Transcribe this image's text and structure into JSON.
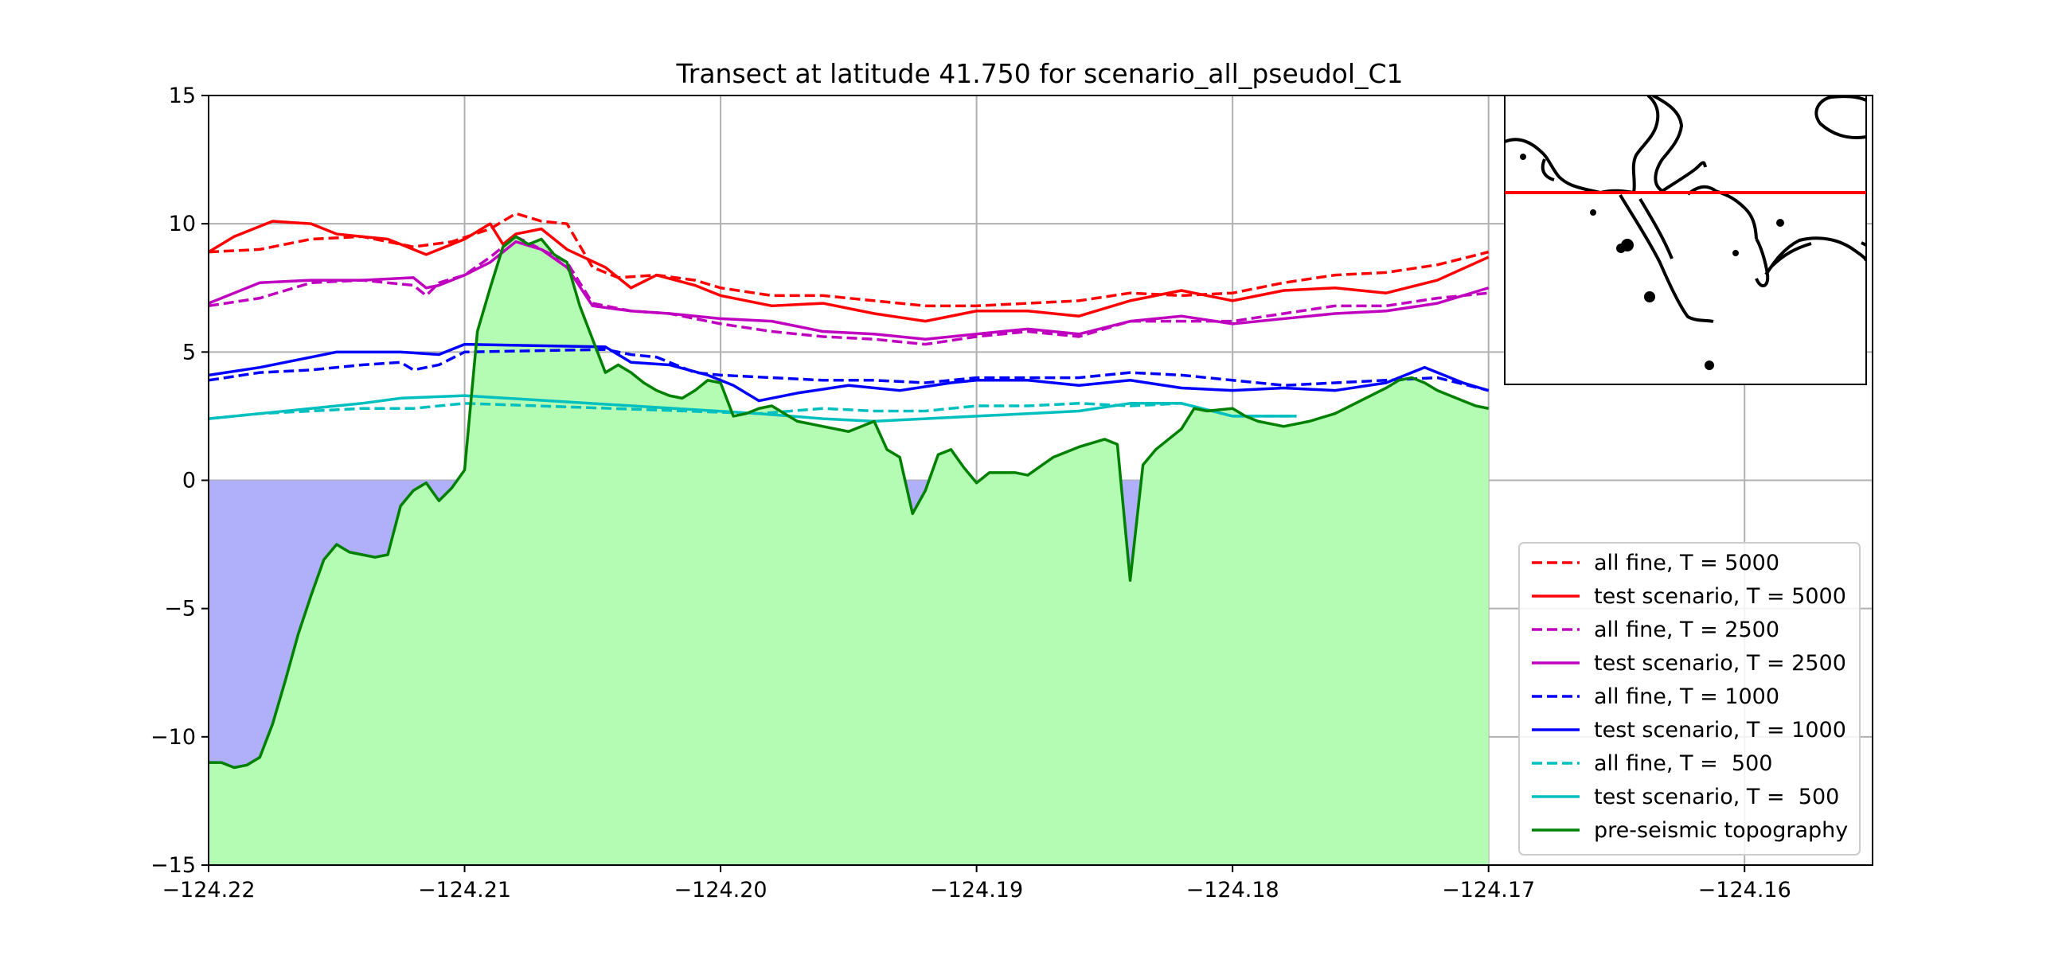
{
  "chart_data": {
    "type": "line",
    "title": "Transect at latitude 41.750 for scenario_all_pseudol_C1",
    "xlabel": "",
    "ylabel": "",
    "xlim": [
      -124.22,
      -124.155
    ],
    "ylim": [
      -15,
      15
    ],
    "xticks": [
      -124.22,
      -124.21,
      -124.2,
      -124.19,
      -124.18,
      -124.17,
      -124.16
    ],
    "xtick_labels": [
      "−124.22",
      "−124.21",
      "−124.20",
      "−124.19",
      "−124.18",
      "−124.17",
      "−124.16"
    ],
    "yticks": [
      -15,
      -10,
      -5,
      0,
      5,
      10,
      15
    ],
    "ytick_labels": [
      "−15",
      "−10",
      "−5",
      "0",
      "5",
      "10",
      "15"
    ],
    "grid": true,
    "legend_position": "lower-right",
    "water_fill_color": "#b0b0fa",
    "land_fill_color": "#b4fbb4",
    "series": [
      {
        "name": "all fine, T = 5000",
        "color": "#ff0000",
        "dash": true,
        "x": [
          -124.22,
          -124.218,
          -124.216,
          -124.214,
          -124.212,
          -124.2105,
          -124.209,
          -124.208,
          -124.207,
          -124.206,
          -124.205,
          -124.204,
          -124.2025,
          -124.201,
          -124.2,
          -124.198,
          -124.196,
          -124.194,
          -124.192,
          -124.19,
          -124.188,
          -124.186,
          -124.184,
          -124.182,
          -124.18,
          -124.178,
          -124.176,
          -124.174,
          -124.172,
          -124.17
        ],
        "y": [
          8.9,
          9.0,
          9.4,
          9.5,
          9.1,
          9.3,
          9.8,
          10.4,
          10.1,
          10.0,
          8.3,
          7.9,
          8.0,
          7.8,
          7.5,
          7.2,
          7.2,
          7.0,
          6.8,
          6.8,
          6.9,
          7.0,
          7.3,
          7.2,
          7.3,
          7.7,
          8.0,
          8.1,
          8.4,
          8.9
        ]
      },
      {
        "name": "test scenario, T = 5000",
        "color": "#ff0000",
        "dash": false,
        "x": [
          -124.22,
          -124.219,
          -124.2175,
          -124.216,
          -124.215,
          -124.213,
          -124.2115,
          -124.21,
          -124.209,
          -124.2085,
          -124.208,
          -124.207,
          -124.206,
          -124.2045,
          -124.2035,
          -124.2025,
          -124.201,
          -124.2,
          -124.198,
          -124.196,
          -124.194,
          -124.192,
          -124.19,
          -124.188,
          -124.186,
          -124.184,
          -124.182,
          -124.18,
          -124.178,
          -124.176,
          -124.174,
          -124.172,
          -124.17
        ],
        "y": [
          8.9,
          9.5,
          10.1,
          10.0,
          9.6,
          9.4,
          8.8,
          9.4,
          10.0,
          9.2,
          9.6,
          9.8,
          9.0,
          8.3,
          7.5,
          8.0,
          7.6,
          7.2,
          6.8,
          6.9,
          6.5,
          6.2,
          6.6,
          6.6,
          6.4,
          7.0,
          7.4,
          7.0,
          7.4,
          7.5,
          7.3,
          7.8,
          8.7
        ]
      },
      {
        "name": "all fine, T = 2500",
        "color": "#bf00bf",
        "dash": true,
        "x": [
          -124.22,
          -124.218,
          -124.216,
          -124.214,
          -124.212,
          -124.2115,
          -124.211,
          -124.21,
          -124.209,
          -124.208,
          -124.207,
          -124.206,
          -124.205,
          -124.2035,
          -124.202,
          -124.2,
          -124.198,
          -124.196,
          -124.194,
          -124.192,
          -124.19,
          -124.188,
          -124.186,
          -124.184,
          -124.182,
          -124.18,
          -124.178,
          -124.176,
          -124.174,
          -124.172,
          -124.17
        ],
        "y": [
          6.8,
          7.1,
          7.7,
          7.8,
          7.6,
          7.2,
          7.7,
          8.0,
          8.7,
          9.5,
          9.0,
          8.5,
          6.9,
          6.6,
          6.5,
          6.1,
          5.8,
          5.6,
          5.5,
          5.3,
          5.6,
          5.8,
          5.6,
          6.2,
          6.2,
          6.2,
          6.5,
          6.8,
          6.8,
          7.1,
          7.3
        ]
      },
      {
        "name": "test scenario, T = 2500",
        "color": "#bf00bf",
        "dash": false,
        "x": [
          -124.22,
          -124.218,
          -124.216,
          -124.214,
          -124.212,
          -124.2115,
          -124.211,
          -124.21,
          -124.209,
          -124.208,
          -124.207,
          -124.206,
          -124.205,
          -124.2035,
          -124.202,
          -124.2,
          -124.198,
          -124.196,
          -124.194,
          -124.192,
          -124.19,
          -124.188,
          -124.186,
          -124.184,
          -124.182,
          -124.18,
          -124.178,
          -124.176,
          -124.174,
          -124.172,
          -124.17
        ],
        "y": [
          6.9,
          7.7,
          7.8,
          7.8,
          7.9,
          7.5,
          7.6,
          8.0,
          8.5,
          9.3,
          9.0,
          8.3,
          6.8,
          6.6,
          6.5,
          6.3,
          6.2,
          5.8,
          5.7,
          5.5,
          5.7,
          5.9,
          5.7,
          6.2,
          6.4,
          6.1,
          6.3,
          6.5,
          6.6,
          6.9,
          7.5
        ]
      },
      {
        "name": "all fine, T = 1000",
        "color": "#0000ff",
        "dash": true,
        "x": [
          -124.22,
          -124.218,
          -124.216,
          -124.214,
          -124.2125,
          -124.212,
          -124.211,
          -124.21,
          -124.2045,
          -124.2035,
          -124.2025,
          -124.201,
          -124.2,
          -124.198,
          -124.196,
          -124.194,
          -124.192,
          -124.19,
          -124.188,
          -124.186,
          -124.184,
          -124.182,
          -124.18,
          -124.178,
          -124.176,
          -124.174,
          -124.172,
          -124.17
        ],
        "y": [
          3.9,
          4.2,
          4.3,
          4.5,
          4.6,
          4.3,
          4.5,
          5.0,
          5.1,
          4.9,
          4.8,
          4.2,
          4.1,
          4.0,
          3.9,
          3.9,
          3.8,
          4.0,
          4.0,
          4.0,
          4.2,
          4.1,
          3.9,
          3.7,
          3.8,
          3.9,
          4.0,
          3.5
        ]
      },
      {
        "name": "test scenario, T = 1000",
        "color": "#0000ff",
        "dash": false,
        "x": [
          -124.22,
          -124.218,
          -124.216,
          -124.215,
          -124.2125,
          -124.211,
          -124.21,
          -124.2045,
          -124.2035,
          -124.202,
          -124.2005,
          -124.1995,
          -124.1985,
          -124.197,
          -124.195,
          -124.193,
          -124.191,
          -124.19,
          -124.188,
          -124.186,
          -124.184,
          -124.182,
          -124.18,
          -124.178,
          -124.176,
          -124.174,
          -124.1725,
          -124.171,
          -124.17
        ],
        "y": [
          4.1,
          4.4,
          4.8,
          5.0,
          5.0,
          4.9,
          5.3,
          5.2,
          4.6,
          4.5,
          4.1,
          3.7,
          3.1,
          3.4,
          3.7,
          3.5,
          3.8,
          3.9,
          3.9,
          3.7,
          3.9,
          3.6,
          3.5,
          3.6,
          3.5,
          3.8,
          4.4,
          3.8,
          3.5
        ]
      },
      {
        "name": "all fine, T =  500",
        "color": "#00bfbf",
        "dash": true,
        "x": [
          -124.22,
          -124.218,
          -124.216,
          -124.214,
          -124.212,
          -124.21,
          -124.1985,
          -124.196,
          -124.194,
          -124.192,
          -124.19,
          -124.188,
          -124.186,
          -124.184,
          -124.182,
          -124.18,
          -124.1775
        ],
        "y": [
          2.4,
          2.6,
          2.7,
          2.8,
          2.8,
          3.0,
          2.6,
          2.8,
          2.7,
          2.7,
          2.9,
          2.9,
          3.0,
          2.9,
          3.0,
          2.5,
          2.5
        ]
      },
      {
        "name": "test scenario, T =  500",
        "color": "#00bfbf",
        "dash": false,
        "x": [
          -124.22,
          -124.218,
          -124.216,
          -124.214,
          -124.2125,
          -124.21,
          -124.1985,
          -124.196,
          -124.194,
          -124.192,
          -124.19,
          -124.188,
          -124.186,
          -124.184,
          -124.182,
          -124.18,
          -124.1775
        ],
        "y": [
          2.4,
          2.6,
          2.8,
          3.0,
          3.2,
          3.3,
          2.6,
          2.4,
          2.3,
          2.4,
          2.5,
          2.6,
          2.7,
          3.0,
          3.0,
          2.5,
          2.5
        ]
      },
      {
        "name": "pre-seismic topography",
        "color": "#008000",
        "dash": false,
        "x": [
          -124.22,
          -124.2195,
          -124.219,
          -124.2185,
          -124.218,
          -124.2175,
          -124.217,
          -124.2165,
          -124.216,
          -124.2155,
          -124.215,
          -124.2145,
          -124.214,
          -124.2135,
          -124.213,
          -124.2125,
          -124.212,
          -124.2115,
          -124.211,
          -124.2105,
          -124.21,
          -124.2095,
          -124.209,
          -124.2085,
          -124.208,
          -124.2075,
          -124.207,
          -124.2065,
          -124.206,
          -124.2055,
          -124.205,
          -124.2045,
          -124.204,
          -124.2035,
          -124.203,
          -124.2025,
          -124.202,
          -124.2015,
          -124.201,
          -124.2005,
          -124.2,
          -124.1995,
          -124.199,
          -124.1985,
          -124.198,
          -124.1975,
          -124.197,
          -124.196,
          -124.195,
          -124.194,
          -124.1935,
          -124.193,
          -124.1925,
          -124.192,
          -124.1915,
          -124.191,
          -124.1905,
          -124.19,
          -124.1895,
          -124.189,
          -124.1885,
          -124.188,
          -124.187,
          -124.186,
          -124.185,
          -124.1845,
          -124.184,
          -124.1835,
          -124.183,
          -124.182,
          -124.1815,
          -124.181,
          -124.18,
          -124.1795,
          -124.179,
          -124.178,
          -124.177,
          -124.176,
          -124.175,
          -124.174,
          -124.1735,
          -124.173,
          -124.1725,
          -124.172,
          -124.1715,
          -124.171,
          -124.1705,
          -124.17
        ],
        "y": [
          -11.0,
          -11.0,
          -11.2,
          -11.1,
          -10.8,
          -9.5,
          -7.8,
          -6.0,
          -4.5,
          -3.1,
          -2.5,
          -2.8,
          -2.9,
          -3.0,
          -2.9,
          -1.0,
          -0.4,
          -0.1,
          -0.8,
          -0.3,
          0.4,
          5.8,
          7.5,
          9.1,
          9.5,
          9.2,
          9.4,
          8.8,
          8.5,
          6.8,
          5.5,
          4.2,
          4.5,
          4.2,
          3.8,
          3.5,
          3.3,
          3.2,
          3.5,
          3.9,
          3.8,
          2.5,
          2.6,
          2.8,
          2.9,
          2.6,
          2.3,
          2.1,
          1.9,
          2.3,
          1.2,
          0.9,
          -1.3,
          -0.4,
          1.0,
          1.2,
          0.5,
          -0.1,
          0.3,
          0.3,
          0.3,
          0.2,
          0.9,
          1.3,
          1.6,
          1.4,
          -3.9,
          0.6,
          1.2,
          2.0,
          2.8,
          2.7,
          2.8,
          2.5,
          2.3,
          2.1,
          2.3,
          2.6,
          3.1,
          3.6,
          3.9,
          4.0,
          3.8,
          3.5,
          3.3,
          3.1,
          2.9,
          2.8
        ]
      }
    ],
    "inset_map": {
      "transect_line_color": "#ff0000"
    }
  }
}
